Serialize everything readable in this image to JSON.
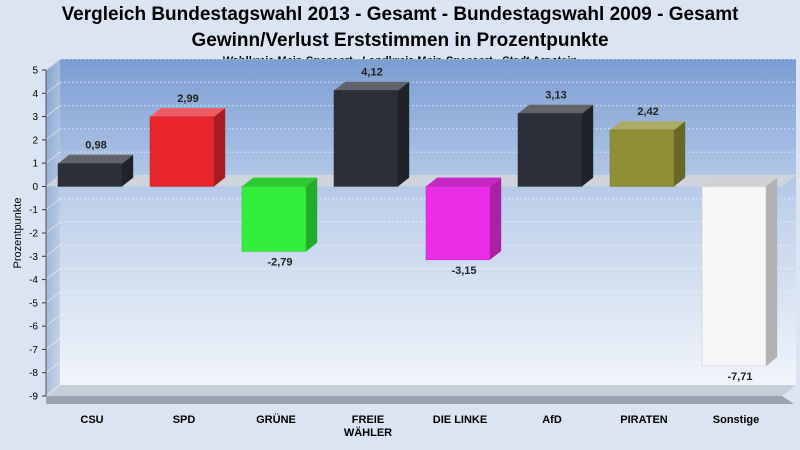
{
  "header": {
    "title_line1": "Vergleich Bundestagswahl 2013 - Gesamt - Bundestagswahl 2009 - Gesamt",
    "title_line2": "Gewinn/Verlust Erststimmen in Prozentpunkte",
    "subtitle": "Wahlkreis Main-Spessart - Landkreis Main-Spessart - Stadt Arnstein"
  },
  "chart_data": {
    "type": "bar",
    "title": "Vergleich Bundestagswahl 2013 - Gesamt - Bundestagswahl 2009 - Gesamt",
    "subtitle": "Gewinn/Verlust Erststimmen in Prozentpunkte",
    "ylabel": "Prozentpunkte",
    "xlabel": "",
    "ylim": [
      -9,
      5
    ],
    "yticks": [
      5,
      4,
      3,
      2,
      1,
      0,
      -1,
      -2,
      -3,
      -4,
      -5,
      -6,
      -7,
      -8,
      -9
    ],
    "grid": true,
    "legend": "none",
    "bars": [
      {
        "category": [
          "CSU"
        ],
        "value": 0.98,
        "label": "0,98",
        "color": "#2c2f3a"
      },
      {
        "category": [
          "SPD"
        ],
        "value": 2.99,
        "label": "2,99",
        "color": "#e8272d"
      },
      {
        "category": [
          "GRÜNE"
        ],
        "value": -2.79,
        "label": "-2,79",
        "color": "#33ee3a"
      },
      {
        "category": [
          "FREIE",
          "WÄHLER"
        ],
        "value": 4.12,
        "label": "4,12",
        "color": "#2c2f3a"
      },
      {
        "category": [
          "DIE LINKE"
        ],
        "value": -3.15,
        "label": "-3,15",
        "color": "#ea2ee8"
      },
      {
        "category": [
          "AfD"
        ],
        "value": 3.13,
        "label": "3,13",
        "color": "#2c2f3a"
      },
      {
        "category": [
          "PIRATEN"
        ],
        "value": 2.42,
        "label": "2,42",
        "color": "#8f8f35"
      },
      {
        "category": [
          "Sonstige"
        ],
        "value": -7.71,
        "label": "-7,71",
        "color": "#f6f6f8"
      }
    ]
  }
}
